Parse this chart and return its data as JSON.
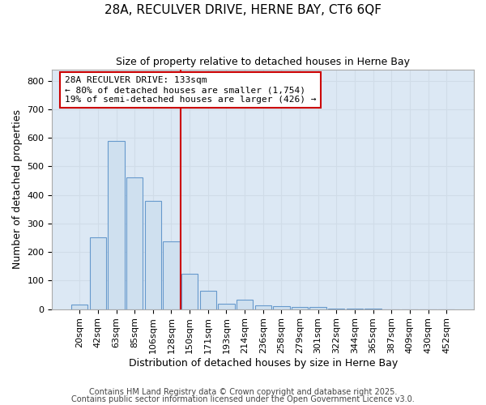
{
  "title1": "28A, RECULVER DRIVE, HERNE BAY, CT6 6QF",
  "title2": "Size of property relative to detached houses in Herne Bay",
  "xlabel": "Distribution of detached houses by size in Herne Bay",
  "ylabel": "Number of detached properties",
  "categories": [
    "20sqm",
    "42sqm",
    "63sqm",
    "85sqm",
    "106sqm",
    "128sqm",
    "150sqm",
    "171sqm",
    "193sqm",
    "214sqm",
    "236sqm",
    "258sqm",
    "279sqm",
    "301sqm",
    "322sqm",
    "344sqm",
    "365sqm",
    "387sqm",
    "409sqm",
    "430sqm",
    "452sqm"
  ],
  "values": [
    15,
    250,
    590,
    460,
    380,
    238,
    125,
    65,
    20,
    32,
    12,
    10,
    8,
    8,
    3,
    3,
    1,
    0,
    0,
    0,
    0
  ],
  "bar_color": "#cfe0ef",
  "bar_edge_color": "#6699cc",
  "red_line_x": 5.5,
  "annotation_line1": "28A RECULVER DRIVE: 133sqm",
  "annotation_line2": "← 80% of detached houses are smaller (1,754)",
  "annotation_line3": "19% of semi-detached houses are larger (426) →",
  "annotation_box_facecolor": "#ffffff",
  "annotation_box_edgecolor": "#cc0000",
  "red_line_color": "#cc0000",
  "ylim": [
    0,
    840
  ],
  "yticks": [
    0,
    100,
    200,
    300,
    400,
    500,
    600,
    700,
    800
  ],
  "grid_color": "#d0dce8",
  "plot_bg_color": "#dce8f4",
  "fig_bg_color": "#ffffff",
  "footer1": "Contains HM Land Registry data © Crown copyright and database right 2025.",
  "footer2": "Contains public sector information licensed under the Open Government Licence v3.0.",
  "title1_fontsize": 11,
  "title2_fontsize": 9,
  "axis_label_fontsize": 9,
  "tick_fontsize": 8,
  "footer_fontsize": 7,
  "annotation_fontsize": 8
}
